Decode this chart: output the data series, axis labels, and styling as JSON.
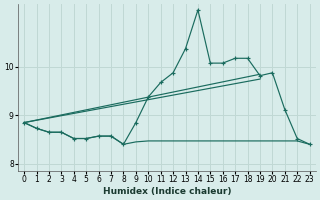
{
  "xlabel": "Humidex (Indice chaleur)",
  "bg_color": "#d8ecea",
  "grid_color": "#c0d8d4",
  "line_color": "#1a6b5e",
  "xlim": [
    -0.5,
    23.5
  ],
  "ylim": [
    7.85,
    11.3
  ],
  "yticks": [
    8,
    9,
    10
  ],
  "xticks": [
    0,
    1,
    2,
    3,
    4,
    5,
    6,
    7,
    8,
    9,
    10,
    11,
    12,
    13,
    14,
    15,
    16,
    17,
    18,
    19,
    20,
    21,
    22,
    23
  ],
  "main_x": [
    0,
    1,
    2,
    3,
    4,
    5,
    6,
    7,
    8,
    9,
    10,
    11,
    12,
    13,
    14,
    15,
    16,
    17,
    18,
    19,
    20,
    21,
    22,
    23
  ],
  "main_y": [
    8.85,
    8.73,
    8.65,
    8.65,
    8.52,
    8.52,
    8.57,
    8.57,
    8.4,
    8.85,
    9.38,
    9.68,
    9.88,
    10.38,
    11.18,
    10.08,
    10.08,
    10.18,
    10.18,
    9.82,
    9.88,
    9.12,
    8.52,
    8.4
  ],
  "flat_x": [
    0,
    1,
    2,
    3,
    4,
    5,
    6,
    7,
    8,
    9,
    10,
    11,
    12,
    13,
    14,
    15,
    16,
    17,
    18,
    19,
    20,
    21,
    22,
    23
  ],
  "flat_y": [
    8.85,
    8.73,
    8.65,
    8.65,
    8.52,
    8.52,
    8.57,
    8.57,
    8.4,
    8.45,
    8.47,
    8.47,
    8.47,
    8.47,
    8.47,
    8.47,
    8.47,
    8.47,
    8.47,
    8.47,
    8.47,
    8.47,
    8.47,
    8.4
  ],
  "trend1_x": [
    0,
    19
  ],
  "trend1_y": [
    8.85,
    9.75
  ],
  "trend2_x": [
    0,
    19
  ],
  "trend2_y": [
    8.85,
    9.85
  ]
}
